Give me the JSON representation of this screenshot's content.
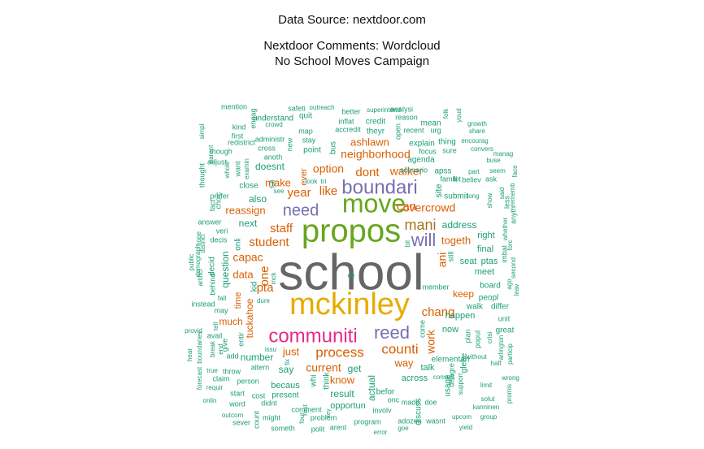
{
  "header": {
    "source": "Data Source: nextdoor.com",
    "title_line1": "Nextdoor Comments: Wordcloud",
    "title_line2": "No School Moves Campaign"
  },
  "palette": {
    "gray": "#666666",
    "gold": "#e6ab02",
    "green": "#66a61e",
    "purple": "#7570b3",
    "magenta": "#e7298a",
    "orange": "#d95f02",
    "teal": "#1b9e77",
    "brown": "#a6761d"
  },
  "words": [
    {
      "t": "school",
      "c": "gray"
    },
    {
      "t": "mckinley",
      "c": "gold"
    },
    {
      "t": "propos",
      "c": "green"
    },
    {
      "t": "move",
      "c": "green"
    },
    {
      "t": "boundari",
      "c": "purple"
    },
    {
      "t": "communiti",
      "c": "magenta"
    },
    {
      "t": "reed",
      "c": "purple"
    },
    {
      "t": "need",
      "c": "purple"
    },
    {
      "t": "will",
      "c": "purple"
    },
    {
      "t": "mani",
      "c": "brown"
    },
    {
      "t": "process",
      "c": "orange"
    },
    {
      "t": "counti",
      "c": "orange"
    },
    {
      "t": "student",
      "c": "orange"
    },
    {
      "t": "staff",
      "c": "orange"
    },
    {
      "t": "chang",
      "c": "orange"
    },
    {
      "t": "can",
      "c": "orange"
    },
    {
      "t": "pta",
      "c": "orange"
    },
    {
      "t": "one",
      "c": "orange"
    },
    {
      "t": "dont",
      "c": "orange"
    },
    {
      "t": "like",
      "c": "orange"
    },
    {
      "t": "year",
      "c": "orange"
    },
    {
      "t": "option",
      "c": "orange"
    },
    {
      "t": "overcrowd",
      "c": "orange"
    },
    {
      "t": "neighborhood",
      "c": "orange"
    },
    {
      "t": "walker",
      "c": "orange"
    },
    {
      "t": "togeth",
      "c": "orange"
    },
    {
      "t": "work",
      "c": "orange"
    },
    {
      "t": "ani",
      "c": "orange"
    },
    {
      "t": "capac",
      "c": "orange"
    },
    {
      "t": "current",
      "c": "orange"
    },
    {
      "t": "just",
      "c": "orange"
    },
    {
      "t": "know",
      "c": "orange"
    },
    {
      "t": "way",
      "c": "orange"
    },
    {
      "t": "tuckahoe",
      "c": "orange"
    },
    {
      "t": "make",
      "c": "orange"
    },
    {
      "t": "ashlawn",
      "c": "orange"
    },
    {
      "t": "reassign",
      "c": "orange"
    },
    {
      "t": "keep",
      "c": "orange"
    },
    {
      "t": "data",
      "c": "orange"
    },
    {
      "t": "much",
      "c": "orange"
    },
    {
      "t": "time",
      "c": "orange"
    },
    {
      "t": "ever",
      "c": "orange"
    },
    {
      "t": "doesnt",
      "c": "teal"
    },
    {
      "t": "also",
      "c": "teal"
    },
    {
      "t": "next",
      "c": "teal"
    },
    {
      "t": "address",
      "c": "teal"
    },
    {
      "t": "number",
      "c": "teal"
    },
    {
      "t": "question",
      "c": "teal"
    },
    {
      "t": "say",
      "c": "teal"
    },
    {
      "t": "get",
      "c": "teal"
    },
    {
      "t": "result",
      "c": "teal"
    },
    {
      "t": "actual",
      "c": "teal"
    },
    {
      "t": "across",
      "c": "teal"
    },
    {
      "t": "talk",
      "c": "teal"
    },
    {
      "t": "now",
      "c": "teal"
    },
    {
      "t": "happen",
      "c": "teal"
    },
    {
      "t": "meet",
      "c": "teal"
    },
    {
      "t": "final",
      "c": "teal"
    },
    {
      "t": "right",
      "c": "teal"
    },
    {
      "t": "seat",
      "c": "teal"
    },
    {
      "t": "ptas",
      "c": "teal"
    },
    {
      "t": "site",
      "c": "teal"
    },
    {
      "t": "close",
      "c": "teal"
    },
    {
      "t": "board",
      "c": "teal"
    },
    {
      "t": "peopl",
      "c": "teal"
    },
    {
      "t": "differ",
      "c": "teal"
    },
    {
      "t": "walk",
      "c": "teal"
    },
    {
      "t": "unit",
      "c": "teal"
    },
    {
      "t": "great",
      "c": "teal"
    },
    {
      "t": "becaus",
      "c": "teal"
    },
    {
      "t": "present",
      "c": "teal"
    },
    {
      "t": "opportun",
      "c": "teal"
    },
    {
      "t": "befor",
      "c": "teal"
    },
    {
      "t": "onc",
      "c": "teal"
    },
    {
      "t": "made",
      "c": "teal"
    },
    {
      "t": "doe",
      "c": "teal"
    },
    {
      "t": "discuss",
      "c": "teal"
    },
    {
      "t": "adozen",
      "c": "teal"
    },
    {
      "t": "wasnt",
      "c": "teal"
    },
    {
      "t": "program",
      "c": "teal"
    },
    {
      "t": "involv",
      "c": "teal"
    },
    {
      "t": "arent",
      "c": "teal"
    },
    {
      "t": "polit",
      "c": "teal"
    },
    {
      "t": "error",
      "c": "teal"
    },
    {
      "t": "goe",
      "c": "teal"
    },
    {
      "t": "problem",
      "c": "teal"
    },
    {
      "t": "comment",
      "c": "teal"
    },
    {
      "t": "someth",
      "c": "teal"
    },
    {
      "t": "might",
      "c": "teal"
    },
    {
      "t": "count",
      "c": "teal"
    },
    {
      "t": "sever",
      "c": "teal"
    },
    {
      "t": "outcom",
      "c": "teal"
    },
    {
      "t": "word",
      "c": "teal"
    },
    {
      "t": "didnt",
      "c": "teal"
    },
    {
      "t": "onlin",
      "c": "teal"
    },
    {
      "t": "start",
      "c": "teal"
    },
    {
      "t": "cost",
      "c": "teal"
    },
    {
      "t": "person",
      "c": "teal"
    },
    {
      "t": "throw",
      "c": "teal"
    },
    {
      "t": "claim",
      "c": "teal"
    },
    {
      "t": "requir",
      "c": "teal"
    },
    {
      "t": "true",
      "c": "teal"
    },
    {
      "t": "forecast",
      "c": "teal"
    },
    {
      "t": "hear",
      "c": "teal"
    },
    {
      "t": "break",
      "c": "teal"
    },
    {
      "t": "boundaries",
      "c": "teal"
    },
    {
      "t": "end",
      "c": "teal"
    },
    {
      "t": "add",
      "c": "teal"
    },
    {
      "t": "give",
      "c": "teal"
    },
    {
      "t": "entir",
      "c": "teal"
    },
    {
      "t": "altern",
      "c": "teal"
    },
    {
      "t": "fix",
      "c": "teal"
    },
    {
      "t": "issu",
      "c": "teal"
    },
    {
      "t": "avail",
      "c": "teal"
    },
    {
      "t": "provid",
      "c": "teal"
    },
    {
      "t": "tell",
      "c": "teal"
    },
    {
      "t": "may",
      "c": "teal"
    },
    {
      "t": "instead",
      "c": "teal"
    },
    {
      "t": "fall",
      "c": "teal"
    },
    {
      "t": "behind",
      "c": "teal"
    },
    {
      "t": "artifici",
      "c": "teal"
    },
    {
      "t": "public",
      "c": "teal"
    },
    {
      "t": "district",
      "c": "teal"
    },
    {
      "t": "demograph",
      "c": "teal"
    },
    {
      "t": "decid",
      "c": "teal"
    },
    {
      "t": "decis",
      "c": "teal"
    },
    {
      "t": "veri",
      "c": "teal"
    },
    {
      "t": "answer",
      "c": "teal"
    },
    {
      "t": "hope",
      "c": "teal"
    },
    {
      "t": "fact",
      "c": "teal"
    },
    {
      "t": "prefer",
      "c": "teal"
    },
    {
      "t": "choic",
      "c": "teal"
    },
    {
      "t": "thought",
      "c": "teal"
    },
    {
      "t": "parent",
      "c": "teal"
    },
    {
      "t": "whole",
      "c": "teal"
    },
    {
      "t": "want",
      "c": "teal"
    },
    {
      "t": "examin",
      "c": "teal"
    },
    {
      "t": "adjust",
      "c": "teal"
    },
    {
      "t": "though",
      "c": "teal"
    },
    {
      "t": "redistrict",
      "c": "teal"
    },
    {
      "t": "first",
      "c": "teal"
    },
    {
      "t": "kind",
      "c": "teal"
    },
    {
      "t": "engag",
      "c": "teal"
    },
    {
      "t": "mention",
      "c": "teal"
    },
    {
      "t": "simpl",
      "c": "teal"
    },
    {
      "t": "understand",
      "c": "teal"
    },
    {
      "t": "safeti",
      "c": "teal"
    },
    {
      "t": "outreach",
      "c": "teal"
    },
    {
      "t": "quit",
      "c": "teal"
    },
    {
      "t": "crowd",
      "c": "teal"
    },
    {
      "t": "map",
      "c": "teal"
    },
    {
      "t": "administr",
      "c": "teal"
    },
    {
      "t": "cross",
      "c": "teal"
    },
    {
      "t": "anoth",
      "c": "teal"
    },
    {
      "t": "new",
      "c": "teal"
    },
    {
      "t": "stay",
      "c": "teal"
    },
    {
      "t": "point",
      "c": "teal"
    },
    {
      "t": "bus",
      "c": "teal"
    },
    {
      "t": "better",
      "c": "teal"
    },
    {
      "t": "superintend",
      "c": "teal"
    },
    {
      "t": "inflat",
      "c": "teal"
    },
    {
      "t": "credit",
      "c": "teal"
    },
    {
      "t": "accredit",
      "c": "teal"
    },
    {
      "t": "theyr",
      "c": "teal"
    },
    {
      "t": "analysi",
      "c": "teal"
    },
    {
      "t": "reason",
      "c": "teal"
    },
    {
      "t": "open",
      "c": "teal"
    },
    {
      "t": "mean",
      "c": "teal"
    },
    {
      "t": "recent",
      "c": "teal"
    },
    {
      "t": "urg",
      "c": "teal"
    },
    {
      "t": "explain",
      "c": "teal"
    },
    {
      "t": "thing",
      "c": "teal"
    },
    {
      "t": "focus",
      "c": "teal"
    },
    {
      "t": "sure",
      "c": "teal"
    },
    {
      "t": "agenda",
      "c": "teal"
    },
    {
      "t": "scenario",
      "c": "teal"
    },
    {
      "t": "apss",
      "c": "teal"
    },
    {
      "t": "famili",
      "c": "teal"
    },
    {
      "t": "lot",
      "c": "teal"
    },
    {
      "t": "part",
      "c": "teal"
    },
    {
      "t": "believ",
      "c": "teal"
    },
    {
      "t": "ask",
      "c": "teal"
    },
    {
      "t": "submit",
      "c": "teal"
    },
    {
      "t": "long",
      "c": "teal"
    },
    {
      "t": "folk",
      "c": "teal"
    },
    {
      "t": "youd",
      "c": "teal"
    },
    {
      "t": "growth",
      "c": "teal"
    },
    {
      "t": "share",
      "c": "teal"
    },
    {
      "t": "encourag",
      "c": "teal"
    },
    {
      "t": "convers",
      "c": "teal"
    },
    {
      "t": "buse",
      "c": "teal"
    },
    {
      "t": "manag",
      "c": "teal"
    },
    {
      "t": "seem",
      "c": "teal"
    },
    {
      "t": "face",
      "c": "teal"
    },
    {
      "t": "said",
      "c": "teal"
    },
    {
      "t": "less",
      "c": "teal"
    },
    {
      "t": "rememb",
      "c": "teal"
    },
    {
      "t": "anyth",
      "c": "teal"
    },
    {
      "t": "show",
      "c": "teal"
    },
    {
      "t": "whether",
      "c": "teal"
    },
    {
      "t": "forc",
      "c": "teal"
    },
    {
      "t": "imbal",
      "c": "teal"
    },
    {
      "t": "second",
      "c": "teal"
    },
    {
      "t": "ago",
      "c": "teal"
    },
    {
      "t": "leav",
      "c": "teal"
    },
    {
      "t": "member",
      "c": "teal"
    },
    {
      "t": "crisi",
      "c": "teal"
    },
    {
      "t": "arlington",
      "c": "teal"
    },
    {
      "t": "particip",
      "c": "teal"
    },
    {
      "t": "without",
      "c": "teal"
    },
    {
      "t": "half",
      "c": "teal"
    },
    {
      "t": "wrong",
      "c": "teal"
    },
    {
      "t": "limit",
      "c": "teal"
    },
    {
      "t": "solut",
      "c": "teal"
    },
    {
      "t": "kanninen",
      "c": "teal"
    },
    {
      "t": "group",
      "c": "teal"
    },
    {
      "t": "upcom",
      "c": "teal"
    },
    {
      "t": "yield",
      "c": "teal"
    },
    {
      "t": "promis",
      "c": "teal"
    },
    {
      "t": "support",
      "c": "teal"
    },
    {
      "t": "disagre",
      "c": "teal"
    },
    {
      "t": "convert",
      "c": "teal"
    },
    {
      "t": "usage",
      "c": "teal"
    },
    {
      "t": "elementari",
      "c": "teal"
    },
    {
      "t": "glebe",
      "c": "teal"
    },
    {
      "t": "popul",
      "c": "teal"
    },
    {
      "t": "plan",
      "c": "teal"
    },
    {
      "t": "come",
      "c": "teal"
    },
    {
      "t": "whi",
      "c": "teal"
    },
    {
      "t": "think",
      "c": "teal"
    },
    {
      "t": "onli",
      "c": "teal"
    },
    {
      "t": "kid",
      "c": "teal"
    },
    {
      "t": "mck",
      "c": "teal"
    },
    {
      "t": "dure",
      "c": "teal"
    },
    {
      "t": "bit",
      "c": "teal"
    },
    {
      "t": "still",
      "c": "teal"
    },
    {
      "t": "look",
      "c": "teal"
    },
    {
      "t": "tri",
      "c": "teal"
    },
    {
      "t": "see",
      "c": "teal"
    },
    {
      "t": "full",
      "c": "teal"
    },
    {
      "t": "rout",
      "c": "teal"
    },
    {
      "t": "four",
      "c": "teal"
    },
    {
      "t": "key",
      "c": "teal"
    },
    {
      "t": "ee",
      "c": "teal"
    }
  ]
}
